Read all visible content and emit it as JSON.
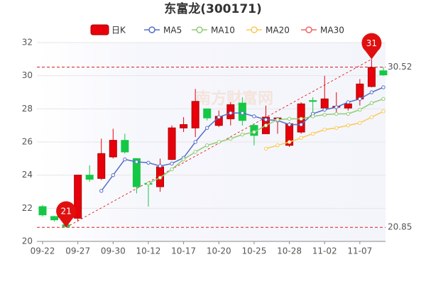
{
  "chart_data": {
    "type": "candlestick",
    "title": "东富龙(300171)",
    "watermark": "南方财富网",
    "categories": [
      "09-22",
      null,
      null,
      "09-27",
      null,
      null,
      "09-30",
      null,
      null,
      "10-12",
      null,
      null,
      "10-17",
      null,
      null,
      "10-20",
      null,
      null,
      "10-25",
      null,
      null,
      "10-28",
      null,
      null,
      "11-02",
      null,
      null,
      "11-07",
      null,
      null
    ],
    "candles": {
      "name": "日K",
      "up_color": "#e8000b",
      "down_color": "#14c845",
      "open": [
        22.1,
        21.5,
        21.0,
        21.4,
        24.0,
        23.8,
        25.1,
        26.1,
        25.0,
        23.5,
        23.3,
        24.95,
        26.85,
        26.85,
        28.0,
        27.0,
        27.4,
        28.35,
        27.0,
        26.5,
        27.4,
        25.8,
        26.6,
        28.5,
        28.05,
        28.1,
        28.05,
        28.6,
        29.35,
        30.3
      ],
      "close": [
        21.6,
        21.3,
        20.9,
        24.0,
        23.75,
        25.3,
        26.1,
        25.4,
        23.3,
        23.45,
        24.5,
        26.85,
        27.05,
        28.45,
        27.45,
        27.55,
        28.25,
        27.3,
        26.4,
        27.5,
        27.45,
        27.1,
        28.3,
        28.45,
        28.6,
        28.15,
        28.3,
        29.5,
        30.5,
        30.05
      ],
      "high": [
        22.2,
        21.55,
        21.1,
        24.0,
        24.6,
        26.2,
        26.8,
        26.5,
        25.0,
        23.6,
        25.0,
        27.0,
        27.5,
        29.2,
        28.0,
        27.9,
        28.4,
        28.7,
        27.1,
        28.2,
        27.5,
        27.2,
        28.4,
        28.7,
        30.0,
        29.0,
        28.5,
        29.8,
        31.0,
        30.52
      ],
      "low": [
        21.5,
        21.2,
        20.85,
        21.2,
        23.6,
        23.7,
        25.0,
        25.3,
        22.9,
        22.1,
        23.0,
        24.9,
        26.6,
        26.3,
        27.3,
        26.9,
        27.0,
        27.0,
        25.8,
        26.5,
        26.5,
        25.7,
        26.5,
        27.6,
        27.9,
        27.6,
        27.9,
        28.2,
        29.3,
        30.0
      ]
    },
    "series": [
      {
        "name": "MA5",
        "color": "#5470c6",
        "values": [
          null,
          null,
          null,
          null,
          null,
          23.05,
          24.0,
          24.95,
          24.8,
          24.75,
          24.55,
          24.7,
          25.05,
          26.0,
          26.85,
          27.5,
          27.75,
          27.75,
          27.55,
          27.35,
          27.3,
          27.05,
          27.05,
          27.7,
          27.95,
          28.1,
          28.4,
          28.6,
          29.0,
          29.3
        ]
      },
      {
        "name": "MA10",
        "color": "#91cc75",
        "values": [
          null,
          null,
          null,
          null,
          null,
          null,
          null,
          null,
          null,
          23.5,
          23.85,
          24.35,
          24.95,
          25.4,
          25.8,
          26.0,
          26.2,
          26.45,
          26.6,
          27.0,
          27.35,
          27.4,
          27.4,
          27.55,
          27.65,
          27.7,
          27.7,
          27.95,
          28.35,
          28.6
        ]
      },
      {
        "name": "MA20",
        "color": "#fac858",
        "values": [
          null,
          null,
          null,
          null,
          null,
          null,
          null,
          null,
          null,
          null,
          null,
          null,
          null,
          null,
          null,
          null,
          null,
          null,
          null,
          25.6,
          25.8,
          26.0,
          26.25,
          26.5,
          26.75,
          26.85,
          27.0,
          27.15,
          27.5,
          27.85
        ]
      },
      {
        "name": "MA30",
        "color": "#ee6666",
        "values": [
          null,
          null,
          null,
          null,
          null,
          null,
          null,
          null,
          null,
          null,
          null,
          null,
          null,
          null,
          null,
          null,
          null,
          null,
          null,
          null,
          null,
          null,
          null,
          null,
          null,
          null,
          null,
          null,
          null,
          null
        ]
      }
    ],
    "max_label": 31,
    "min_label": 21,
    "reference_lines": [
      30.52,
      20.85
    ],
    "ylim": [
      20,
      32
    ],
    "yticks": [
      20,
      22,
      24,
      26,
      28,
      30,
      32
    ],
    "grid": true
  }
}
